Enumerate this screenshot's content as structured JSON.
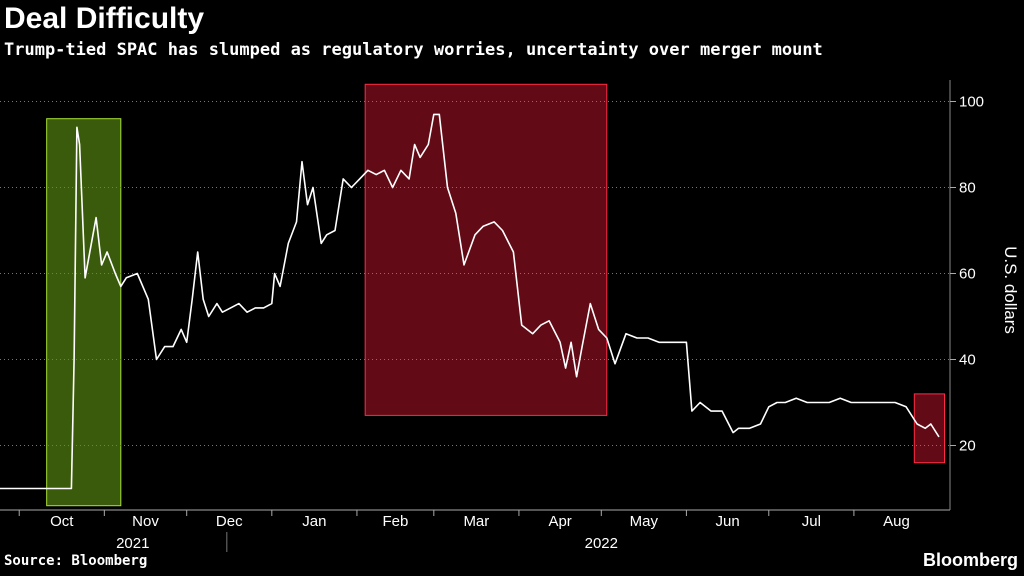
{
  "header": {
    "title": "Deal Difficulty",
    "subtitle": "Trump-tied SPAC has slumped as regulatory worries, uncertainty over merger mount"
  },
  "footer": {
    "source": "Source: Bloomberg",
    "brand": "Bloomberg"
  },
  "colors": {
    "background": "#000000",
    "line": "#ffffff",
    "green_highlight": "#4d7a10",
    "red_highlight": "#8b0f1f"
  },
  "chart_data": {
    "type": "line",
    "title": "Deal Difficulty",
    "ylabel": "U.S. dollars",
    "ylim": [
      5,
      105
    ],
    "yticks": [
      20,
      40,
      60,
      80,
      100
    ],
    "xlim": [
      "2021-09-24",
      "2022-09-05"
    ],
    "month_ticks": [
      {
        "label": "Oct",
        "date": "2021-10-01"
      },
      {
        "label": "Nov",
        "date": "2021-11-01"
      },
      {
        "label": "Dec",
        "date": "2021-12-01"
      },
      {
        "label": "Jan",
        "date": "2022-01-01"
      },
      {
        "label": "Feb",
        "date": "2022-02-01"
      },
      {
        "label": "Mar",
        "date": "2022-03-01"
      },
      {
        "label": "Apr",
        "date": "2022-04-01"
      },
      {
        "label": "May",
        "date": "2022-05-01"
      },
      {
        "label": "Jun",
        "date": "2022-06-01"
      },
      {
        "label": "Jul",
        "date": "2022-07-01"
      },
      {
        "label": "Aug",
        "date": "2022-08-01"
      }
    ],
    "years": [
      {
        "label": "2021",
        "date": "2021-11-15"
      },
      {
        "label": "2022",
        "date": "2022-05-01"
      }
    ],
    "highlights": [
      {
        "name": "green",
        "start": "2021-10-11",
        "end": "2021-11-07",
        "ymin": 6,
        "ymax": 96
      },
      {
        "name": "red-1",
        "start": "2022-02-04",
        "end": "2022-05-03",
        "ymin": 27,
        "ymax": 104
      },
      {
        "name": "red-2",
        "start": "2022-08-23",
        "end": "2022-09-03",
        "ymin": 16,
        "ymax": 32
      }
    ],
    "series": [
      {
        "name": "Price",
        "points": [
          [
            "2021-09-24",
            10
          ],
          [
            "2021-10-06",
            10
          ],
          [
            "2021-10-20",
            10
          ],
          [
            "2021-10-21",
            40
          ],
          [
            "2021-10-22",
            94
          ],
          [
            "2021-10-23",
            90
          ],
          [
            "2021-10-25",
            59
          ],
          [
            "2021-10-27",
            66
          ],
          [
            "2021-10-29",
            73
          ],
          [
            "2021-10-31",
            62
          ],
          [
            "2021-11-02",
            65
          ],
          [
            "2021-11-05",
            60
          ],
          [
            "2021-11-07",
            57
          ],
          [
            "2021-11-09",
            59
          ],
          [
            "2021-11-13",
            60
          ],
          [
            "2021-11-17",
            54
          ],
          [
            "2021-11-20",
            40
          ],
          [
            "2021-11-23",
            43
          ],
          [
            "2021-11-26",
            43
          ],
          [
            "2021-11-29",
            47
          ],
          [
            "2021-12-01",
            44
          ],
          [
            "2021-12-03",
            54
          ],
          [
            "2021-12-05",
            65
          ],
          [
            "2021-12-07",
            54
          ],
          [
            "2021-12-09",
            50
          ],
          [
            "2021-12-12",
            53
          ],
          [
            "2021-12-14",
            51
          ],
          [
            "2021-12-17",
            52
          ],
          [
            "2021-12-20",
            53
          ],
          [
            "2021-12-23",
            51
          ],
          [
            "2021-12-26",
            52
          ],
          [
            "2021-12-29",
            52
          ],
          [
            "2022-01-01",
            53
          ],
          [
            "2022-01-02",
            60
          ],
          [
            "2022-01-04",
            57
          ],
          [
            "2022-01-07",
            67
          ],
          [
            "2022-01-10",
            72
          ],
          [
            "2022-01-12",
            86
          ],
          [
            "2022-01-14",
            76
          ],
          [
            "2022-01-16",
            80
          ],
          [
            "2022-01-19",
            67
          ],
          [
            "2022-01-21",
            69
          ],
          [
            "2022-01-24",
            70
          ],
          [
            "2022-01-27",
            82
          ],
          [
            "2022-01-30",
            80
          ],
          [
            "2022-02-02",
            82
          ],
          [
            "2022-02-05",
            84
          ],
          [
            "2022-02-08",
            83
          ],
          [
            "2022-02-11",
            84
          ],
          [
            "2022-02-14",
            80
          ],
          [
            "2022-02-17",
            84
          ],
          [
            "2022-02-20",
            82
          ],
          [
            "2022-02-22",
            90
          ],
          [
            "2022-02-24",
            87
          ],
          [
            "2022-02-27",
            90
          ],
          [
            "2022-03-01",
            97
          ],
          [
            "2022-03-03",
            97
          ],
          [
            "2022-03-06",
            80
          ],
          [
            "2022-03-09",
            74
          ],
          [
            "2022-03-12",
            62
          ],
          [
            "2022-03-16",
            69
          ],
          [
            "2022-03-19",
            71
          ],
          [
            "2022-03-23",
            72
          ],
          [
            "2022-03-26",
            70
          ],
          [
            "2022-03-30",
            65
          ],
          [
            "2022-04-02",
            48
          ],
          [
            "2022-04-06",
            46
          ],
          [
            "2022-04-09",
            48
          ],
          [
            "2022-04-12",
            49
          ],
          [
            "2022-04-16",
            44
          ],
          [
            "2022-04-18",
            38
          ],
          [
            "2022-04-20",
            44
          ],
          [
            "2022-04-22",
            36
          ],
          [
            "2022-04-24",
            43
          ],
          [
            "2022-04-27",
            53
          ],
          [
            "2022-04-30",
            47
          ],
          [
            "2022-05-03",
            45
          ],
          [
            "2022-05-06",
            39
          ],
          [
            "2022-05-10",
            46
          ],
          [
            "2022-05-14",
            45
          ],
          [
            "2022-05-18",
            45
          ],
          [
            "2022-05-22",
            44
          ],
          [
            "2022-05-26",
            44
          ],
          [
            "2022-05-29",
            44
          ],
          [
            "2022-06-01",
            44
          ],
          [
            "2022-06-03",
            28
          ],
          [
            "2022-06-06",
            30
          ],
          [
            "2022-06-10",
            28
          ],
          [
            "2022-06-14",
            28
          ],
          [
            "2022-06-18",
            23
          ],
          [
            "2022-06-20",
            24
          ],
          [
            "2022-06-24",
            24
          ],
          [
            "2022-06-28",
            25
          ],
          [
            "2022-07-01",
            29
          ],
          [
            "2022-07-04",
            30
          ],
          [
            "2022-07-07",
            30
          ],
          [
            "2022-07-11",
            31
          ],
          [
            "2022-07-15",
            30
          ],
          [
            "2022-07-19",
            30
          ],
          [
            "2022-07-23",
            30
          ],
          [
            "2022-07-27",
            31
          ],
          [
            "2022-07-31",
            30
          ],
          [
            "2022-08-04",
            30
          ],
          [
            "2022-08-08",
            30
          ],
          [
            "2022-08-12",
            30
          ],
          [
            "2022-08-16",
            30
          ],
          [
            "2022-08-20",
            29
          ],
          [
            "2022-08-24",
            25
          ],
          [
            "2022-08-27",
            24
          ],
          [
            "2022-08-29",
            25
          ],
          [
            "2022-09-01",
            22
          ]
        ]
      }
    ]
  }
}
